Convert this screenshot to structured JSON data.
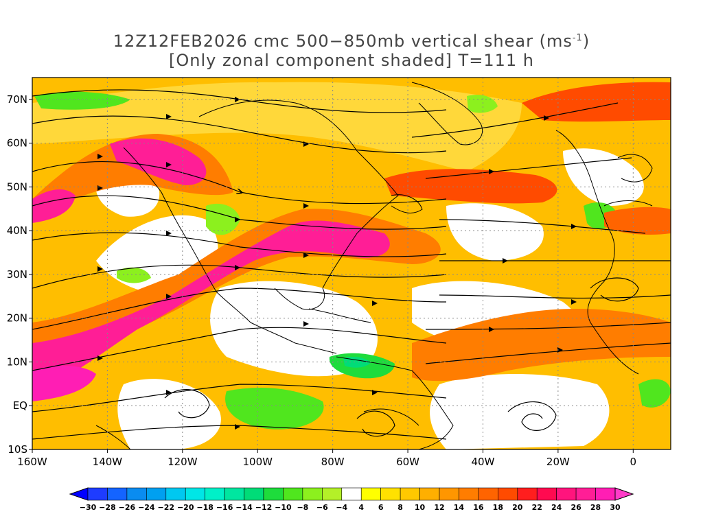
{
  "title": {
    "line1": "12Z12FEB2026 cmc 500−850mb vertical shear (ms",
    "line1_sup": "-1",
    "line1_end": ")",
    "line2": "[Only zonal component shaded] T=111 h"
  },
  "map": {
    "lon_range": [
      -160,
      10
    ],
    "lat_range": [
      -10,
      75
    ],
    "lon_ticks": [
      {
        "value": -160,
        "label": "160W"
      },
      {
        "value": -140,
        "label": "140W"
      },
      {
        "value": -120,
        "label": "120W"
      },
      {
        "value": -100,
        "label": "100W"
      },
      {
        "value": -80,
        "label": "80W"
      },
      {
        "value": -60,
        "label": "60W"
      },
      {
        "value": -40,
        "label": "40W"
      },
      {
        "value": -20,
        "label": "20W"
      },
      {
        "value": 0,
        "label": "0"
      }
    ],
    "lat_ticks": [
      {
        "value": 70,
        "label": "70N"
      },
      {
        "value": 60,
        "label": "60N"
      },
      {
        "value": 50,
        "label": "50N"
      },
      {
        "value": 40,
        "label": "40N"
      },
      {
        "value": 30,
        "label": "30N"
      },
      {
        "value": 20,
        "label": "20N"
      },
      {
        "value": 10,
        "label": "10N"
      },
      {
        "value": 0,
        "label": "EQ"
      },
      {
        "value": -10,
        "label": "10S"
      }
    ],
    "grid": "dotted"
  },
  "colorbar": {
    "labels": [
      "-30",
      "-28",
      "-26",
      "-24",
      "-22",
      "-20",
      "-18",
      "-16",
      "-14",
      "-12",
      "-10",
      "-8",
      "-6",
      "-4",
      "4",
      "6",
      "8",
      "10",
      "12",
      "14",
      "16",
      "18",
      "20",
      "22",
      "24",
      "26",
      "28",
      "30"
    ],
    "colors": [
      "#1e3cff",
      "#1464ff",
      "#0a8cf0",
      "#00a0f0",
      "#00c8f0",
      "#00e6e6",
      "#00f0c8",
      "#00e6a0",
      "#00dc78",
      "#1edc3c",
      "#50e61e",
      "#8cf01e",
      "#b4f028",
      "#ffffff",
      "#ffff00",
      "#ffe100",
      "#ffc800",
      "#ffaf00",
      "#ff9600",
      "#ff7d00",
      "#ff6400",
      "#ff4b00",
      "#ff1e1e",
      "#ff0a50",
      "#ff147d",
      "#ff1e96",
      "#ff1eb4"
    ],
    "end_low": "#0000ff",
    "end_high": "#ff3cc8"
  }
}
